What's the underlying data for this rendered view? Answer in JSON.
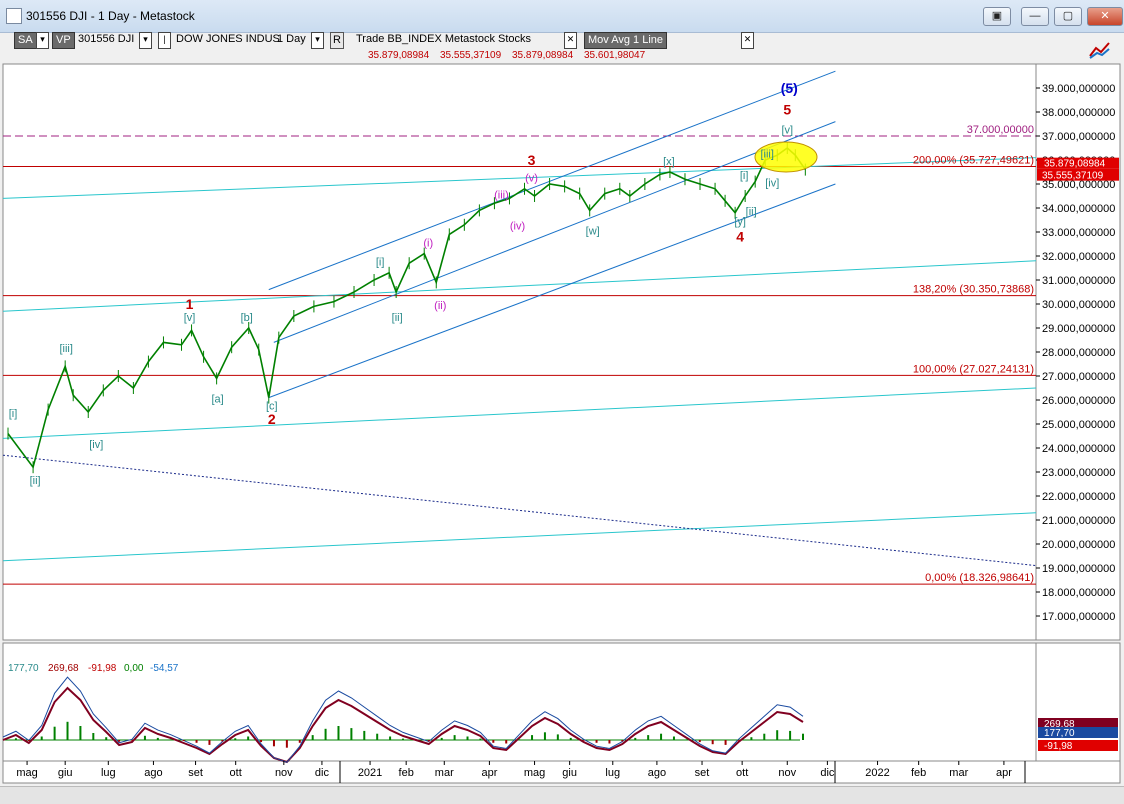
{
  "window": {
    "title": "301556 DJI - 1 Day - Metastock"
  },
  "window_buttons": [
    "▣",
    "—",
    "▢",
    "✕"
  ],
  "toolbar": {
    "sa": "SA",
    "vp": "VP",
    "symbol": "301556 DJI",
    "name": "DOW JONES INDUS",
    "period": "1 Day",
    "r": "R",
    "tags": "Trade  BB_INDEX  Metastock  Stocks",
    "close_x": "✕",
    "indicator": "Mov Avg 1 Line",
    "close_x2": "✕",
    "dropdown": "▾"
  },
  "ohlc": [
    "35.879,08984",
    "35.555,37109",
    "35.879,08984",
    "35.601,98047"
  ],
  "indicator_values": [
    "177,70",
    "269,68",
    "-91,98",
    "0,00",
    "-54,57"
  ],
  "colors": {
    "price": "#008000",
    "red": "#c00000",
    "cyan": "#2ac6cc",
    "blue": "#1a73c8",
    "teal": "#2a8a8a",
    "magenta": "#c020c0",
    "navy": "#0000cc"
  },
  "chart_data": {
    "type": "line",
    "ylim": [
      16000000,
      40000000
    ],
    "yticks": [
      17000000,
      18000000,
      19000000,
      20000000,
      21000000,
      22000000,
      23000000,
      24000000,
      25000000,
      26000000,
      27000000,
      28000000,
      29000000,
      30000000,
      31000000,
      32000000,
      33000000,
      34000000,
      35000000,
      36000000,
      37000000,
      38000000,
      39000000
    ],
    "ytick_labels": [
      "17.000,000000",
      "18.000,000000",
      "19.000,000000",
      "20.000,000000",
      "21.000,000000",
      "22.000,000000",
      "23.000,000000",
      "24.000,000000",
      "25.000,000000",
      "26.000,000000",
      "27.000,000000",
      "28.000,000000",
      "29.000,000000",
      "30.000,000000",
      "31.000,000000",
      "32.000,000000",
      "33.000,000000",
      "34.000,000000",
      "35.000,000000",
      "36.000,000000",
      "37.000,000000",
      "38.000,000000",
      "39.000,000000"
    ],
    "xlabels": [
      "mag",
      "giu",
      "lug",
      "ago",
      "set",
      "ott",
      "nov",
      "dic",
      "2021",
      "feb",
      "mar",
      "apr",
      "mag",
      "giu",
      "lug",
      "ago",
      "set",
      "ott",
      "nov",
      "dic",
      "2022",
      "feb",
      "mar",
      "apr"
    ],
    "xlim": [
      0,
      1030
    ],
    "xticks": [
      24,
      62,
      105,
      150,
      192,
      232,
      280,
      318,
      366,
      402,
      440,
      485,
      530,
      565,
      608,
      652,
      697,
      737,
      782,
      822,
      872,
      913,
      953,
      998
    ],
    "price_labels": {
      "last": "35.555,37109",
      "hidden": "35.879,08984"
    },
    "series": [
      {
        "x": [
          5,
          30,
          45,
          62,
          70,
          85,
          100,
          115,
          130,
          145,
          160,
          178,
          188,
          200,
          213,
          228,
          245,
          255,
          265,
          275,
          290,
          310,
          330,
          350,
          370,
          385,
          392,
          405,
          420,
          432,
          445,
          460,
          475,
          490,
          505,
          520,
          530,
          545,
          560,
          575,
          585,
          600,
          615,
          625,
          640,
          655,
          665,
          680,
          695,
          710,
          720,
          730,
          740,
          750,
          760,
          772,
          782,
          790,
          800
        ],
        "values": [
          24600000,
          23200000,
          25600000,
          27400000,
          26200000,
          25500000,
          26400000,
          27000000,
          26500000,
          27600000,
          28400000,
          28300000,
          28900000,
          27800000,
          26900000,
          28200000,
          29000000,
          28100000,
          26100000,
          28600000,
          29500000,
          29900000,
          30100000,
          30500000,
          31000000,
          31300000,
          30500000,
          31700000,
          32100000,
          30900000,
          32900000,
          33300000,
          33900000,
          34200000,
          34400000,
          34800000,
          34500000,
          35000000,
          34900000,
          34600000,
          33900000,
          34600000,
          34800000,
          34500000,
          35000000,
          35400000,
          35500000,
          35200000,
          35000000,
          34800000,
          34300000,
          33800000,
          34500000,
          35100000,
          36000000,
          36200000,
          36500000,
          36200000,
          35600000
        ]
      }
    ],
    "hlines": [
      {
        "value": 37000000,
        "label": "37.000,00000",
        "style": "dash",
        "color": "#a02080"
      },
      {
        "value": 35727496,
        "label": "200,00% (35.727,49621)",
        "color": "#c00000"
      },
      {
        "value": 30350739,
        "label": "138,20% (30.350,73868)",
        "color": "#c00000"
      },
      {
        "value": 27027241,
        "label": "100,00% (27.027,24131)",
        "color": "#c00000"
      },
      {
        "value": 18326986,
        "label": "0,00% (18.326,98641)",
        "color": "#c00000"
      }
    ],
    "trendlines": [
      {
        "x1": 0,
        "y1": 34400000,
        "x2": 1030,
        "y2": 36100000,
        "color": "#2ac6cc"
      },
      {
        "x1": 0,
        "y1": 29700000,
        "x2": 1030,
        "y2": 31800000,
        "color": "#2ac6cc"
      },
      {
        "x1": 0,
        "y1": 24400000,
        "x2": 1030,
        "y2": 26500000,
        "color": "#2ac6cc"
      },
      {
        "x1": 0,
        "y1": 19300000,
        "x2": 1030,
        "y2": 21300000,
        "color": "#2ac6cc"
      },
      {
        "x1": 265,
        "y1": 30600000,
        "x2": 830,
        "y2": 39700000,
        "color": "#1a73c8"
      },
      {
        "x1": 270,
        "y1": 28400000,
        "x2": 830,
        "y2": 37600000,
        "color": "#1a73c8"
      },
      {
        "x1": 265,
        "y1": 26100000,
        "x2": 830,
        "y2": 35000000,
        "color": "#1a73c8"
      },
      {
        "x1": 0,
        "y1": 23700000,
        "x2": 1030,
        "y2": 19100000,
        "color": "#1a2a8a",
        "style": "dot"
      }
    ],
    "wave_labels": [
      {
        "text": "[i]",
        "x": 10,
        "y": 25300000,
        "color": "#2a8a8a"
      },
      {
        "text": "[ii]",
        "x": 32,
        "y": 22500000,
        "color": "#2a8a8a"
      },
      {
        "text": "[iii]",
        "x": 63,
        "y": 28000000,
        "color": "#2a8a8a"
      },
      {
        "text": "[iv]",
        "x": 93,
        "y": 24000000,
        "color": "#2a8a8a"
      },
      {
        "text": "[v]",
        "x": 186,
        "y": 29300000,
        "color": "#2a8a8a"
      },
      {
        "text": "1",
        "x": 186,
        "y": 29800000,
        "color": "#c00000"
      },
      {
        "text": "[a]",
        "x": 214,
        "y": 25900000,
        "color": "#2a8a8a"
      },
      {
        "text": "[b]",
        "x": 243,
        "y": 29300000,
        "color": "#2a8a8a"
      },
      {
        "text": "[c]",
        "x": 268,
        "y": 25600000,
        "color": "#2a8a8a"
      },
      {
        "text": "2",
        "x": 268,
        "y": 25000000,
        "color": "#c00000"
      },
      {
        "text": "[i]",
        "x": 376,
        "y": 31600000,
        "color": "#2a8a8a"
      },
      {
        "text": "[ii]",
        "x": 393,
        "y": 29300000,
        "color": "#2a8a8a"
      },
      {
        "text": "(i)",
        "x": 424,
        "y": 32400000,
        "color": "#c020c0"
      },
      {
        "text": "(ii)",
        "x": 436,
        "y": 29800000,
        "color": "#c020c0"
      },
      {
        "text": "(iii)",
        "x": 497,
        "y": 34400000,
        "color": "#c020c0"
      },
      {
        "text": "(iv)",
        "x": 513,
        "y": 33100000,
        "color": "#c020c0"
      },
      {
        "text": "(v)",
        "x": 527,
        "y": 35100000,
        "color": "#c020c0"
      },
      {
        "text": "3",
        "x": 527,
        "y": 35800000,
        "color": "#c00000"
      },
      {
        "text": "[w]",
        "x": 588,
        "y": 32900000,
        "color": "#2a8a8a"
      },
      {
        "text": "[x]",
        "x": 664,
        "y": 35800000,
        "color": "#2a8a8a"
      },
      {
        "text": "[y]",
        "x": 735,
        "y": 33300000,
        "color": "#2a8a8a"
      },
      {
        "text": "4",
        "x": 735,
        "y": 32600000,
        "color": "#c00000"
      },
      {
        "text": "[i]",
        "x": 739,
        "y": 35200000,
        "color": "#2a8a8a"
      },
      {
        "text": "[ii]",
        "x": 746,
        "y": 33700000,
        "color": "#2a8a8a"
      },
      {
        "text": "[iii]",
        "x": 762,
        "y": 36100000,
        "color": "#2a8a8a"
      },
      {
        "text": "[iv]",
        "x": 767,
        "y": 34900000,
        "color": "#2a8a8a"
      },
      {
        "text": "[v]",
        "x": 782,
        "y": 37100000,
        "color": "#2a8a8a"
      },
      {
        "text": "5",
        "x": 782,
        "y": 37900000,
        "color": "#c00000"
      },
      {
        "text": "(5)",
        "x": 784,
        "y": 38800000,
        "color": "#0000cc"
      }
    ]
  }
}
